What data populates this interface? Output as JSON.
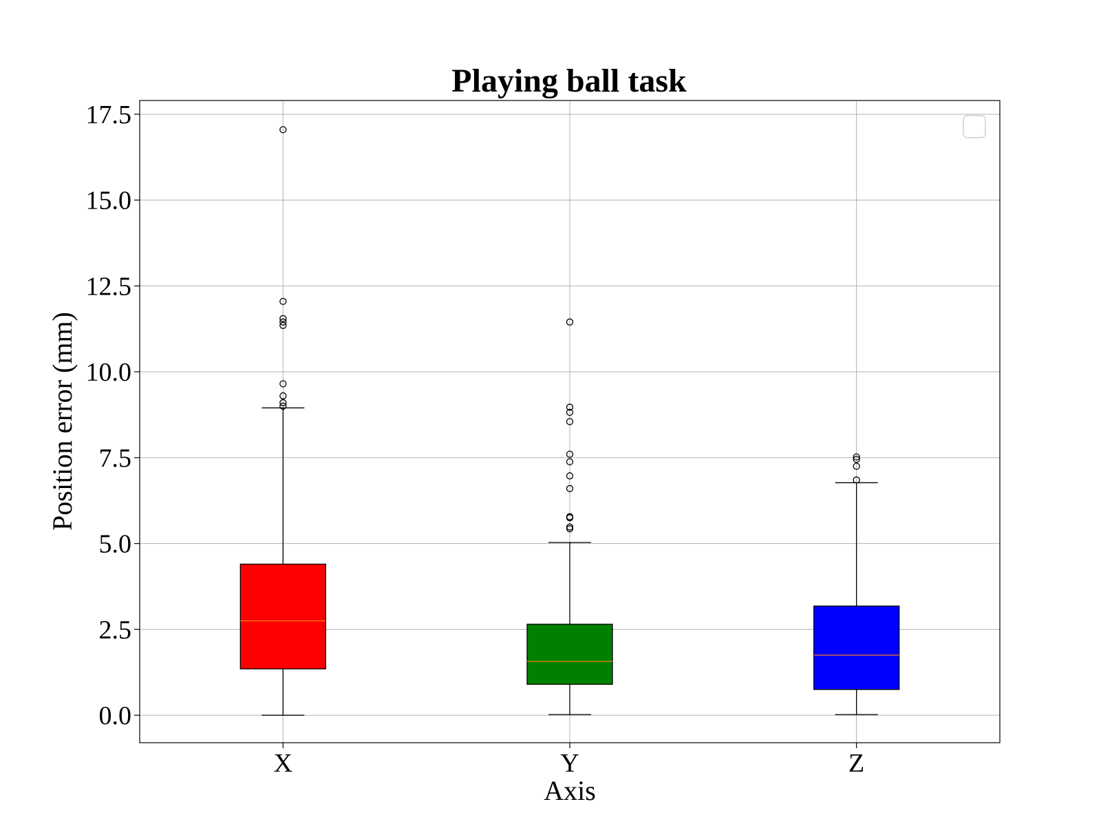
{
  "chart_data": {
    "type": "box",
    "title": "Playing ball task",
    "xlabel": "Axis",
    "ylabel": "Position error (mm)",
    "categories": [
      "X",
      "Y",
      "Z"
    ],
    "ylim": [
      -0.8,
      17.9
    ],
    "yticks": [
      0.0,
      2.5,
      5.0,
      7.5,
      10.0,
      12.5,
      15.0,
      17.5
    ],
    "ytick_labels": [
      "0.0",
      "2.5",
      "5.0",
      "7.5",
      "10.0",
      "12.5",
      "15.0",
      "17.5"
    ],
    "grid": true,
    "legend": {
      "position": "top-right",
      "entries": []
    },
    "boxes": [
      {
        "category": "X",
        "color": "#ff0000",
        "whisker_low": 0.0,
        "q1": 1.35,
        "median": 2.75,
        "q3": 4.4,
        "whisker_high": 8.95,
        "outliers": [
          9.0,
          9.1,
          9.3,
          9.65,
          11.35,
          11.45,
          11.55,
          12.05,
          17.05
        ]
      },
      {
        "category": "Y",
        "color": "#008000",
        "whisker_low": 0.02,
        "q1": 0.9,
        "median": 1.57,
        "q3": 2.65,
        "whisker_high": 5.03,
        "outliers": [
          5.43,
          5.48,
          5.75,
          5.78,
          6.6,
          6.97,
          7.38,
          7.6,
          8.55,
          8.82,
          8.97,
          11.45
        ]
      },
      {
        "category": "Z",
        "color": "#0000ff",
        "whisker_low": 0.02,
        "q1": 0.75,
        "median": 1.75,
        "q3": 3.18,
        "whisker_high": 6.77,
        "outliers": [
          6.85,
          7.25,
          7.45,
          7.52
        ]
      }
    ],
    "median_color": "#ff7f0e"
  }
}
